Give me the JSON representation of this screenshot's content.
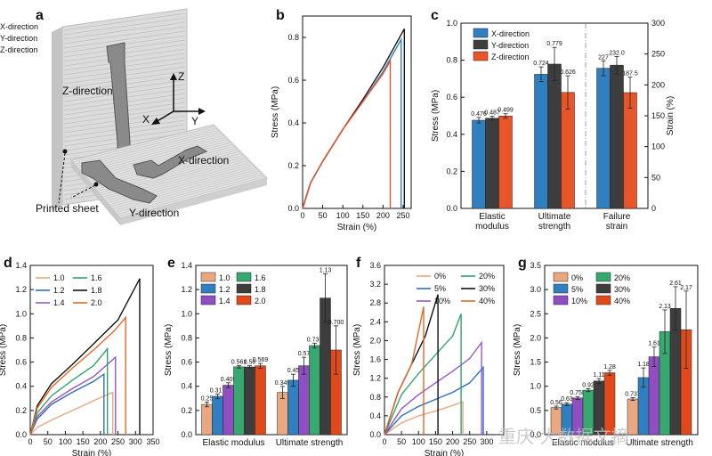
{
  "panel_labels": [
    "a",
    "b",
    "c",
    "d",
    "e",
    "f",
    "g"
  ],
  "panel_a": {
    "labels": [
      "Z-direction",
      "X-direction",
      "Y-direction",
      "Printed sheet"
    ],
    "axes": [
      "Z",
      "X",
      "Y"
    ]
  },
  "watermark": "重庆·大数据文摘",
  "colors": {
    "blue": "#2f7fc1",
    "dark": "#3d3d3d",
    "orange": "#e8552b",
    "tan": "#e9a87f",
    "purple": "#8f4fc1",
    "green": "#37a86f",
    "black": "#111111",
    "redorange": "#e04a1a",
    "line_black": "#1a1a1a",
    "line_olive": "#7f9a3a",
    "line_green": "#2fa56a",
    "line_purple": "#9a55c7",
    "line_blue": "#2f6fb8",
    "line_orange": "#e06a25"
  },
  "chart_data": [
    {
      "id": "b",
      "type": "line",
      "xlabel": "Strain (%)",
      "ylabel": "Stress (MPa)",
      "xlim": [
        0,
        270
      ],
      "ylim": [
        0,
        0.9
      ],
      "xticks": [
        0,
        50,
        100,
        150,
        200,
        250
      ],
      "yticks": [
        0.0,
        0.2,
        0.4,
        0.6,
        0.8
      ],
      "legend_position": "top-left",
      "series": [
        {
          "name": "X-direction",
          "color": "#2f7fc1",
          "x": [
            0,
            20,
            50,
            100,
            150,
            200,
            245,
            245
          ],
          "y": [
            0,
            0.12,
            0.22,
            0.37,
            0.5,
            0.64,
            0.79,
            0
          ]
        },
        {
          "name": "Y-direction",
          "color": "#1a1a1a",
          "x": [
            0,
            20,
            50,
            100,
            150,
            200,
            253,
            253
          ],
          "y": [
            0,
            0.12,
            0.22,
            0.37,
            0.51,
            0.66,
            0.84,
            0
          ]
        },
        {
          "name": "Z-direction",
          "color": "#e8552b",
          "x": [
            0,
            20,
            50,
            100,
            150,
            200,
            218,
            218
          ],
          "y": [
            0,
            0.12,
            0.22,
            0.37,
            0.5,
            0.63,
            0.69,
            0
          ]
        }
      ]
    },
    {
      "id": "c",
      "type": "bar",
      "ylabel": "Stress (MPa)",
      "y2label": "Strain (%)",
      "ylim": [
        0,
        1.0
      ],
      "y2lim": [
        0,
        300
      ],
      "yticks": [
        0.0,
        0.2,
        0.4,
        0.6,
        0.8,
        1.0
      ],
      "y2ticks": [
        0,
        50,
        100,
        150,
        200,
        250,
        300
      ],
      "categories": [
        "Elastic\nmodulus",
        "Ultimate\nstrength",
        "Failure\nstrain"
      ],
      "legend_position": "top-left",
      "series": [
        {
          "name": "X-direction",
          "color": "#2f7fc1",
          "values": [
            0.476,
            0.724,
            227
          ],
          "errors": [
            0.015,
            0.04,
            12
          ],
          "labels": [
            "0.476",
            "0.724",
            "227"
          ]
        },
        {
          "name": "Y-direction",
          "color": "#3d3d3d",
          "values": [
            0.487,
            0.779,
            232.0
          ],
          "errors": [
            0.01,
            0.09,
            14
          ],
          "labels": [
            "0.487",
            "0.779",
            "232.0"
          ]
        },
        {
          "name": "Z-direction",
          "color": "#e8552b",
          "values": [
            0.499,
            0.626,
            187.5
          ],
          "errors": [
            0.012,
            0.09,
            25
          ],
          "labels": [
            "0.499",
            "0.626",
            "187.5"
          ]
        }
      ]
    },
    {
      "id": "d",
      "type": "line",
      "xlabel": "Strain (%)",
      "ylabel": "Stress (MPa)",
      "xlim": [
        0,
        350
      ],
      "ylim": [
        0,
        1.4
      ],
      "xticks": [
        0,
        50,
        100,
        150,
        200,
        250,
        300,
        350
      ],
      "yticks": [
        0.0,
        0.2,
        0.4,
        0.6,
        0.8,
        1.0,
        1.2,
        1.4
      ],
      "legend_position": "top-left",
      "series": [
        {
          "name": "1.0",
          "color": "#e9a87f",
          "x": [
            0,
            20,
            60,
            120,
            180,
            235,
            235
          ],
          "y": [
            0,
            0.06,
            0.12,
            0.2,
            0.28,
            0.35,
            0
          ]
        },
        {
          "name": "1.2",
          "color": "#2f6fb8",
          "x": [
            0,
            20,
            60,
            120,
            180,
            210,
            210
          ],
          "y": [
            0,
            0.13,
            0.25,
            0.35,
            0.44,
            0.5,
            0
          ]
        },
        {
          "name": "1.4",
          "color": "#9a55c7",
          "x": [
            0,
            20,
            60,
            120,
            180,
            243,
            243
          ],
          "y": [
            0,
            0.15,
            0.27,
            0.38,
            0.48,
            0.64,
            0
          ]
        },
        {
          "name": "1.6",
          "color": "#2fa56a",
          "x": [
            0,
            20,
            60,
            120,
            180,
            220,
            220
          ],
          "y": [
            0,
            0.18,
            0.32,
            0.45,
            0.57,
            0.71,
            0
          ]
        },
        {
          "name": "1.8",
          "color": "#111111",
          "x": [
            0,
            20,
            60,
            120,
            180,
            250,
            312,
            312
          ],
          "y": [
            0,
            0.24,
            0.42,
            0.58,
            0.75,
            0.95,
            1.29,
            0
          ]
        },
        {
          "name": "2.0",
          "color": "#e06a25",
          "x": [
            0,
            20,
            60,
            120,
            180,
            240,
            272,
            272
          ],
          "y": [
            0,
            0.22,
            0.39,
            0.55,
            0.7,
            0.86,
            0.97,
            0
          ]
        }
      ]
    },
    {
      "id": "e",
      "type": "bar",
      "ylabel": "Stress (MPa)",
      "ylim": [
        0,
        1.4
      ],
      "yticks": [
        0.0,
        0.2,
        0.4,
        0.6,
        0.8,
        1.0,
        1.2,
        1.4
      ],
      "categories": [
        "Elastic modulus",
        "Ultimate strength"
      ],
      "legend_position": "top-left",
      "series": [
        {
          "name": "1.0",
          "color": "#e9a87f",
          "values": [
            0.25,
            0.349
          ],
          "errors": [
            0.02,
            0.05
          ],
          "labels": [
            "0.25",
            "0.349"
          ]
        },
        {
          "name": "1.2",
          "color": "#2f7fc1",
          "values": [
            0.317,
            0.45
          ],
          "errors": [
            0.02,
            0.05
          ],
          "labels": [
            "0.317",
            "0.45"
          ]
        },
        {
          "name": "1.4",
          "color": "#8f4fc1",
          "values": [
            0.409,
            0.57
          ],
          "errors": [
            0.02,
            0.07
          ],
          "labels": [
            "0.409",
            "0.57"
          ]
        },
        {
          "name": "1.6",
          "color": "#37a86f",
          "values": [
            0.561,
            0.737
          ],
          "errors": [
            0.01,
            0.02
          ],
          "labels": [
            "0.561",
            "0.737"
          ]
        },
        {
          "name": "1.8",
          "color": "#3d3d3d",
          "values": [
            0.56,
            1.13
          ],
          "errors": [
            0.01,
            0.2
          ],
          "labels": [
            "0.56",
            "1.13"
          ]
        },
        {
          "name": "2.0",
          "color": "#e04a1a",
          "values": [
            0.569,
            0.7
          ],
          "errors": [
            0.02,
            0.2
          ],
          "labels": [
            "0.569",
            "0.700"
          ]
        }
      ]
    },
    {
      "id": "f",
      "type": "line",
      "xlabel": "Strain (%)",
      "ylabel": "Stress (MPa)",
      "xlim": [
        0,
        350
      ],
      "ylim": [
        0,
        3.6
      ],
      "xticks": [
        0,
        50,
        100,
        150,
        200,
        250,
        300
      ],
      "yticks": [
        0.0,
        0.4,
        0.8,
        1.2,
        1.6,
        2.0,
        2.4,
        2.8,
        3.2,
        3.6
      ],
      "legend_position": "top-right",
      "series": [
        {
          "name": "0%",
          "color": "#e9a87f",
          "x": [
            0,
            50,
            100,
            150,
            200,
            230,
            230
          ],
          "y": [
            0,
            0.25,
            0.4,
            0.5,
            0.62,
            0.7,
            0
          ]
        },
        {
          "name": "5%",
          "color": "#2f6fb8",
          "x": [
            0,
            50,
            100,
            150,
            200,
            250,
            290,
            290
          ],
          "y": [
            0,
            0.4,
            0.6,
            0.75,
            0.9,
            1.1,
            1.43,
            0
          ]
        },
        {
          "name": "10%",
          "color": "#9a55c7",
          "x": [
            0,
            50,
            100,
            150,
            200,
            250,
            285,
            285
          ],
          "y": [
            0,
            0.55,
            0.85,
            1.1,
            1.35,
            1.62,
            1.96,
            0
          ]
        },
        {
          "name": "20%",
          "color": "#2fa56a",
          "x": [
            0,
            50,
            100,
            150,
            200,
            225,
            225
          ],
          "y": [
            0,
            0.85,
            1.3,
            1.7,
            2.1,
            2.57,
            0
          ]
        },
        {
          "name": "30%",
          "color": "#111111",
          "x": [
            0,
            40,
            80,
            120,
            157,
            157
          ],
          "y": [
            0,
            0.9,
            1.5,
            2.1,
            2.98,
            0
          ]
        },
        {
          "name": "40%",
          "color": "#e06a25",
          "x": [
            0,
            40,
            80,
            115,
            115
          ],
          "y": [
            0,
            0.9,
            1.5,
            2.72,
            0
          ]
        }
      ]
    },
    {
      "id": "g",
      "type": "bar",
      "ylabel": "Stress (MPa)",
      "ylim": [
        0,
        3.5
      ],
      "yticks": [
        0.0,
        0.5,
        1.0,
        1.5,
        2.0,
        2.5,
        3.0,
        3.5
      ],
      "categories": [
        "Elastic modulus",
        "Ultimate strength"
      ],
      "legend_position": "top-left",
      "series": [
        {
          "name": "0%",
          "color": "#e9a87f",
          "values": [
            0.56,
            0.737
          ],
          "errors": [
            0.03,
            0.03
          ],
          "labels": [
            "0.56",
            "0.737"
          ]
        },
        {
          "name": "5%",
          "color": "#2f7fc1",
          "values": [
            0.63,
            1.18
          ],
          "errors": [
            0.03,
            0.2
          ],
          "labels": [
            "0.63",
            "1.18"
          ]
        },
        {
          "name": "10%",
          "color": "#8f4fc1",
          "values": [
            0.758,
            1.61
          ],
          "errors": [
            0.03,
            0.2
          ],
          "labels": [
            "0.758",
            "1.61"
          ]
        },
        {
          "name": "20%",
          "color": "#37a86f",
          "values": [
            0.92,
            2.13
          ],
          "errors": [
            0.03,
            0.45
          ],
          "labels": [
            "0.92",
            "2.13"
          ]
        },
        {
          "name": "30%",
          "color": "#3d3d3d",
          "values": [
            1.11,
            2.61
          ],
          "errors": [
            0.05,
            0.45
          ],
          "labels": [
            "1.11",
            "2.61"
          ]
        },
        {
          "name": "40%",
          "color": "#e04a1a",
          "values": [
            1.28,
            2.17
          ],
          "errors": [
            0.05,
            0.8
          ],
          "labels": [
            "1.28",
            "2.17"
          ]
        }
      ]
    }
  ]
}
